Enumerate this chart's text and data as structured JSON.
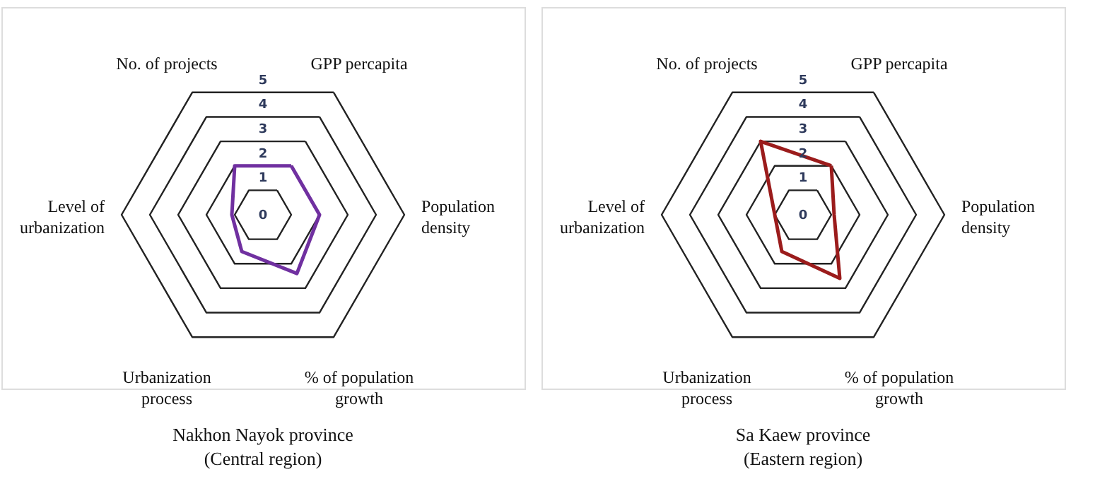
{
  "chart_data": [
    {
      "type": "radar",
      "title": "Nakhon Nayok province\n(Central region)",
      "categories": [
        "GPP percapita",
        "Population\ndensity",
        "% of population\ngrowth",
        "Urbanization\nprocess",
        "Level of\nurbanization",
        "No. of projects"
      ],
      "ylim": [
        0,
        5
      ],
      "yticks": [
        0,
        1,
        2,
        3,
        4,
        5
      ],
      "grid": true,
      "series": [
        {
          "color": "#7030a0",
          "values": [
            2,
            2,
            2.4,
            1.5,
            1.1,
            2
          ]
        }
      ]
    },
    {
      "type": "radar",
      "title": "Sa Kaew province\n(Eastern region)",
      "categories": [
        "GPP percapita",
        "Population\ndensity",
        "% of population\ngrowth",
        "Urbanization\nprocess",
        "Level of\nurbanization",
        "No. of projects"
      ],
      "ylim": [
        0,
        5
      ],
      "yticks": [
        0,
        1,
        2,
        3,
        4,
        5
      ],
      "grid": true,
      "series": [
        {
          "color": "#9b1c1c",
          "values": [
            2,
            1.1,
            2.6,
            1.5,
            1,
            3
          ]
        }
      ]
    }
  ]
}
